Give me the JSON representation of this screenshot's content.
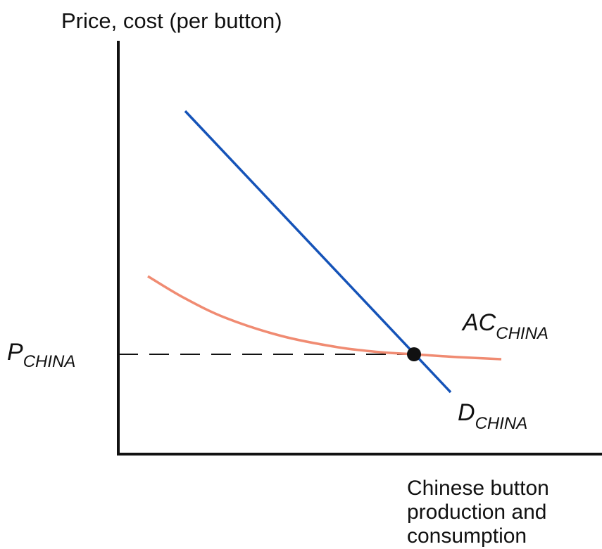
{
  "labels": {
    "y_axis": "Price, cost (per button)",
    "x_axis_lines": [
      "Chinese button",
      "production and",
      "consumption"
    ],
    "price": {
      "main": "P",
      "sub": "CHINA"
    },
    "avg_cost": {
      "main": "AC",
      "sub": "CHINA"
    },
    "demand": {
      "main": "D",
      "sub": "CHINA"
    }
  },
  "colors": {
    "axes": "#111111",
    "demand_curve": "#1553b8",
    "avg_cost_curve": "#f08b72",
    "dashed_line": "#111111",
    "equilibrium_point": "#111111"
  },
  "chart_data": {
    "type": "line",
    "series": [
      {
        "name": "D_CHINA",
        "points": [
          [
            263,
            158
          ],
          [
            640,
            558
          ]
        ]
      },
      {
        "name": "AC_CHINA",
        "points": [
          [
            210,
            393
          ],
          [
            260,
            423
          ],
          [
            320,
            452
          ],
          [
            400,
            478
          ],
          [
            480,
            494
          ],
          [
            540,
            501
          ],
          [
            588,
            504
          ],
          [
            650,
            508
          ],
          [
            712,
            511
          ]
        ]
      }
    ],
    "equilibrium": [
      588,
      504
    ],
    "price_level_y": 504
  }
}
